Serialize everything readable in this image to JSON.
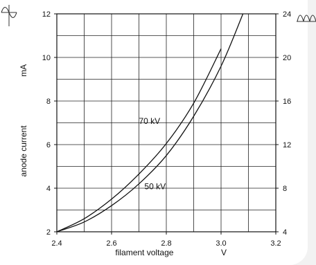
{
  "chart_data": {
    "type": "line",
    "xlabel": "filament voltage",
    "xunit": "V",
    "ylabel": "anode current",
    "yunit": "mA",
    "xlim": [
      2.4,
      3.2
    ],
    "ylim": [
      2,
      12
    ],
    "y2lim": [
      4,
      24
    ],
    "x_ticks": [
      2.4,
      2.6,
      2.8,
      3.0,
      3.2
    ],
    "x_tick_labels": [
      "2.4",
      "2.6",
      "2.8",
      "3.0",
      "3.2"
    ],
    "y_ticks": [
      2,
      4,
      6,
      8,
      10,
      12
    ],
    "y_tick_labels": [
      "2",
      "4",
      "6",
      "8",
      "10",
      "12"
    ],
    "y2_ticks": [
      4,
      8,
      12,
      16,
      20,
      24
    ],
    "y2_tick_labels": [
      "4",
      "8",
      "12",
      "16",
      "20",
      "24"
    ],
    "grid": true,
    "left_icon": "half-wave-icon",
    "right_icon": "full-wave-rectified-icon",
    "series": [
      {
        "name": "70 kV",
        "x": [
          2.4,
          2.5,
          2.6,
          2.7,
          2.8,
          2.9,
          3.0
        ],
        "y": [
          2.0,
          2.6,
          3.5,
          4.65,
          6.05,
          7.9,
          10.4
        ]
      },
      {
        "name": "50 kV",
        "x": [
          2.4,
          2.5,
          2.6,
          2.7,
          2.8,
          2.9,
          3.0,
          3.08
        ],
        "y": [
          2.0,
          2.45,
          3.2,
          4.2,
          5.5,
          7.3,
          9.6,
          12.0
        ]
      }
    ]
  }
}
